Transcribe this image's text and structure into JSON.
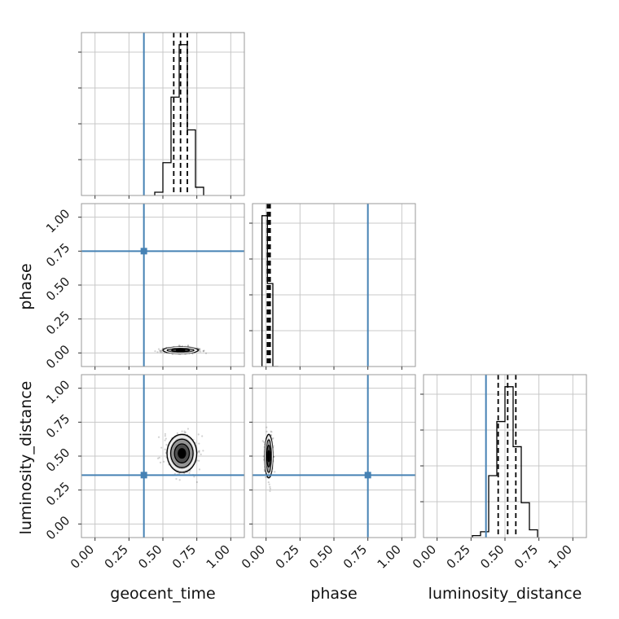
{
  "chart_data": {
    "type": "corner",
    "parameters": [
      "geocent_time",
      "phase",
      "luminosity_distance"
    ],
    "axis_range": [
      -0.1,
      1.1
    ],
    "tick_values": [
      0.0,
      0.25,
      0.5,
      0.75,
      1.0
    ],
    "tick_labels": [
      "0.00",
      "0.25",
      "0.50",
      "0.75",
      "1.00"
    ],
    "grid": true,
    "truth_color": "#4682b4",
    "line_color": "#000000",
    "truths": {
      "geocent_time": 0.36,
      "phase": 0.75,
      "luminosity_distance": 0.36
    },
    "quantiles": {
      "geocent_time": [
        0.58,
        0.63,
        0.68
      ],
      "phase": [
        0.01,
        0.02,
        0.03
      ],
      "luminosity_distance": [
        0.45,
        0.52,
        0.58
      ]
    },
    "histograms": {
      "geocent_time": {
        "bin_edges": [
          0.44,
          0.5,
          0.56,
          0.62,
          0.68,
          0.74,
          0.8
        ],
        "heights": [
          0.02,
          0.2,
          0.6,
          0.92,
          0.4,
          0.05
        ]
      },
      "phase": {
        "bin_edges": [
          -0.03,
          0.01,
          0.05,
          0.09
        ],
        "heights": [
          1.0,
          0.55,
          0.0
        ]
      },
      "luminosity_distance": {
        "bin_edges": [
          0.26,
          0.32,
          0.38,
          0.44,
          0.5,
          0.56,
          0.62,
          0.68,
          0.74
        ],
        "heights": [
          0.01,
          0.03,
          0.32,
          0.6,
          0.78,
          0.47,
          0.18,
          0.04
        ]
      }
    },
    "contour_centers": {
      "phase_vs_geocent_time": {
        "x": 0.63,
        "y": 0.02,
        "sx": 0.065,
        "sy": 0.012
      },
      "luminosity_distance_vs_geocent_time": {
        "x": 0.64,
        "y": 0.52,
        "sx": 0.055,
        "sy": 0.07
      },
      "luminosity_distance_vs_phase": {
        "x": 0.02,
        "y": 0.5,
        "sx": 0.015,
        "sy": 0.08
      }
    },
    "xlabels": [
      "geocent_time",
      "phase",
      "luminosity_distance"
    ],
    "ylabels": [
      "",
      "phase",
      "luminosity_distance"
    ]
  }
}
